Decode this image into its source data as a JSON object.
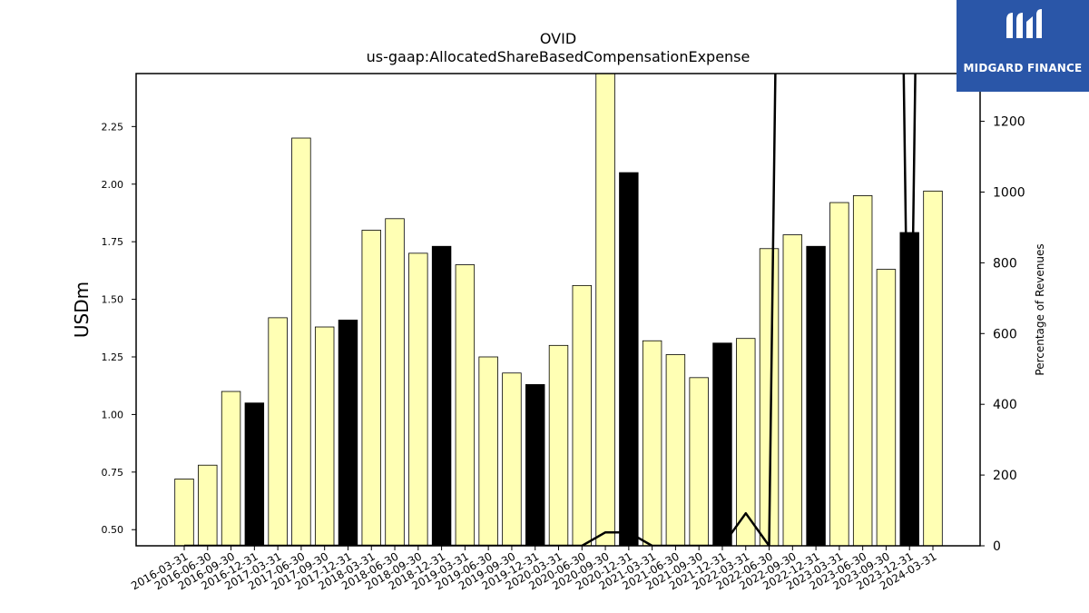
{
  "chart_data": {
    "type": "bar",
    "title": "OVID",
    "subtitle": "us-gaap:AllocatedShareBasedCompensationExpense",
    "ylabel": "USDm",
    "y2label": "Percentage of Revenues",
    "ylim": [
      0.43,
      2.48
    ],
    "y2lim": [
      0,
      1335
    ],
    "yticks": [
      "0.50",
      "0.75",
      "1.00",
      "1.25",
      "1.50",
      "1.75",
      "2.00",
      "2.25"
    ],
    "y2ticks": [
      "0",
      "200",
      "400",
      "600",
      "800",
      "1000",
      "1200"
    ],
    "categories": [
      "2016-03-31",
      "2016-06-30",
      "2016-09-30",
      "2016-12-31",
      "2017-03-31",
      "2017-06-30",
      "2017-09-30",
      "2017-12-31",
      "2018-03-31",
      "2018-06-30",
      "2018-09-30",
      "2018-12-31",
      "2019-03-31",
      "2019-06-30",
      "2019-09-30",
      "2019-12-31",
      "2020-03-31",
      "2020-06-30",
      "2020-09-30",
      "2020-12-31",
      "2021-03-31",
      "2021-06-30",
      "2021-09-30",
      "2021-12-31",
      "2022-03-31",
      "2022-06-30",
      "2022-09-30",
      "2022-12-31",
      "2023-03-31",
      "2023-06-30",
      "2023-09-30",
      "2023-12-31",
      "2024-03-31"
    ],
    "values": [
      0.72,
      0.78,
      1.1,
      1.05,
      1.42,
      2.2,
      1.38,
      1.41,
      1.8,
      1.85,
      1.7,
      1.73,
      1.65,
      1.25,
      1.18,
      1.13,
      1.3,
      1.56,
      2.55,
      2.05,
      1.32,
      1.26,
      1.16,
      1.31,
      1.33,
      1.72,
      1.78,
      1.73,
      1.92,
      1.95,
      1.63,
      1.79,
      1.97
    ],
    "q4_flags": [
      0,
      0,
      0,
      1,
      0,
      0,
      0,
      1,
      0,
      0,
      0,
      1,
      0,
      0,
      0,
      1,
      0,
      0,
      0,
      1,
      0,
      0,
      0,
      1,
      0,
      0,
      0,
      1,
      0,
      0,
      0,
      1,
      0
    ],
    "percent_of_revenue": [
      0,
      0,
      0,
      0,
      0,
      0,
      0,
      0,
      0,
      0,
      0,
      0,
      0,
      0,
      0,
      0,
      0,
      0,
      38,
      38,
      0,
      0,
      0,
      0,
      92,
      0,
      5000,
      5000,
      5000,
      5000,
      5000,
      130,
      5000
    ],
    "colors": {
      "bar": "#ffffb4",
      "q4_bar": "#000000",
      "line": "#000000"
    }
  },
  "logo": {
    "text": "MIDGARD FINANCE",
    "color": "#2a56a8"
  }
}
